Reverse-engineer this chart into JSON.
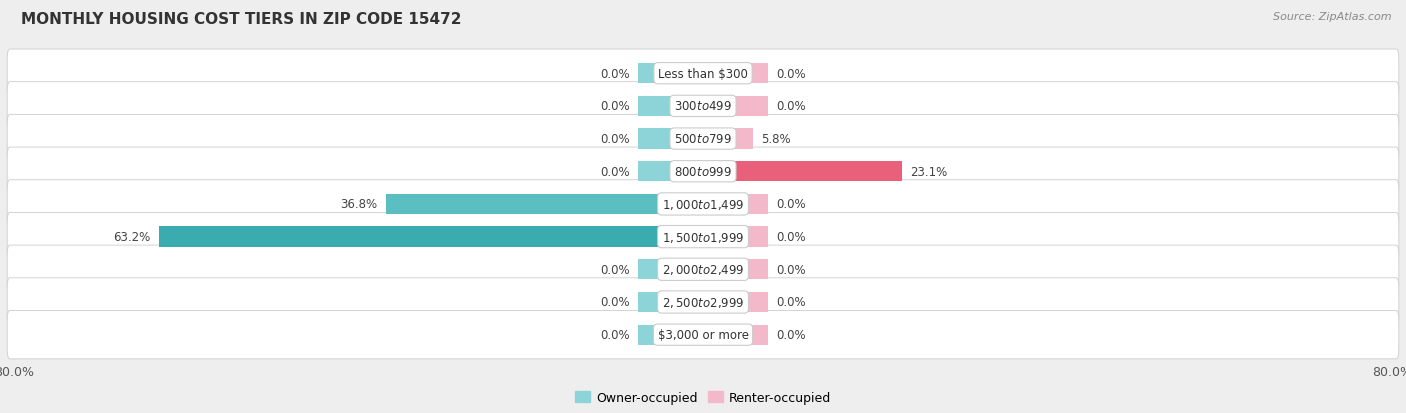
{
  "title": "MONTHLY HOUSING COST TIERS IN ZIP CODE 15472",
  "source": "Source: ZipAtlas.com",
  "categories": [
    "Less than $300",
    "$300 to $499",
    "$500 to $799",
    "$800 to $999",
    "$1,000 to $1,499",
    "$1,500 to $1,999",
    "$2,000 to $2,499",
    "$2,500 to $2,999",
    "$3,000 or more"
  ],
  "owner_values": [
    0.0,
    0.0,
    0.0,
    0.0,
    36.8,
    63.2,
    0.0,
    0.0,
    0.0
  ],
  "renter_values": [
    0.0,
    0.0,
    5.8,
    23.1,
    0.0,
    0.0,
    0.0,
    0.0,
    0.0
  ],
  "owner_color_light": "#8dd4d8",
  "owner_color_dark": "#3aacb0",
  "renter_color_light": "#f4b8cb",
  "renter_color_strong": "#e8607a",
  "row_bg_color": "#ffffff",
  "background_color": "#eeeeee",
  "xlim": 80.0,
  "bar_height": 0.62,
  "stub_size": 7.5,
  "label_fontsize": 8.5,
  "cat_fontsize": 8.5,
  "title_fontsize": 11,
  "legend_fontsize": 9
}
